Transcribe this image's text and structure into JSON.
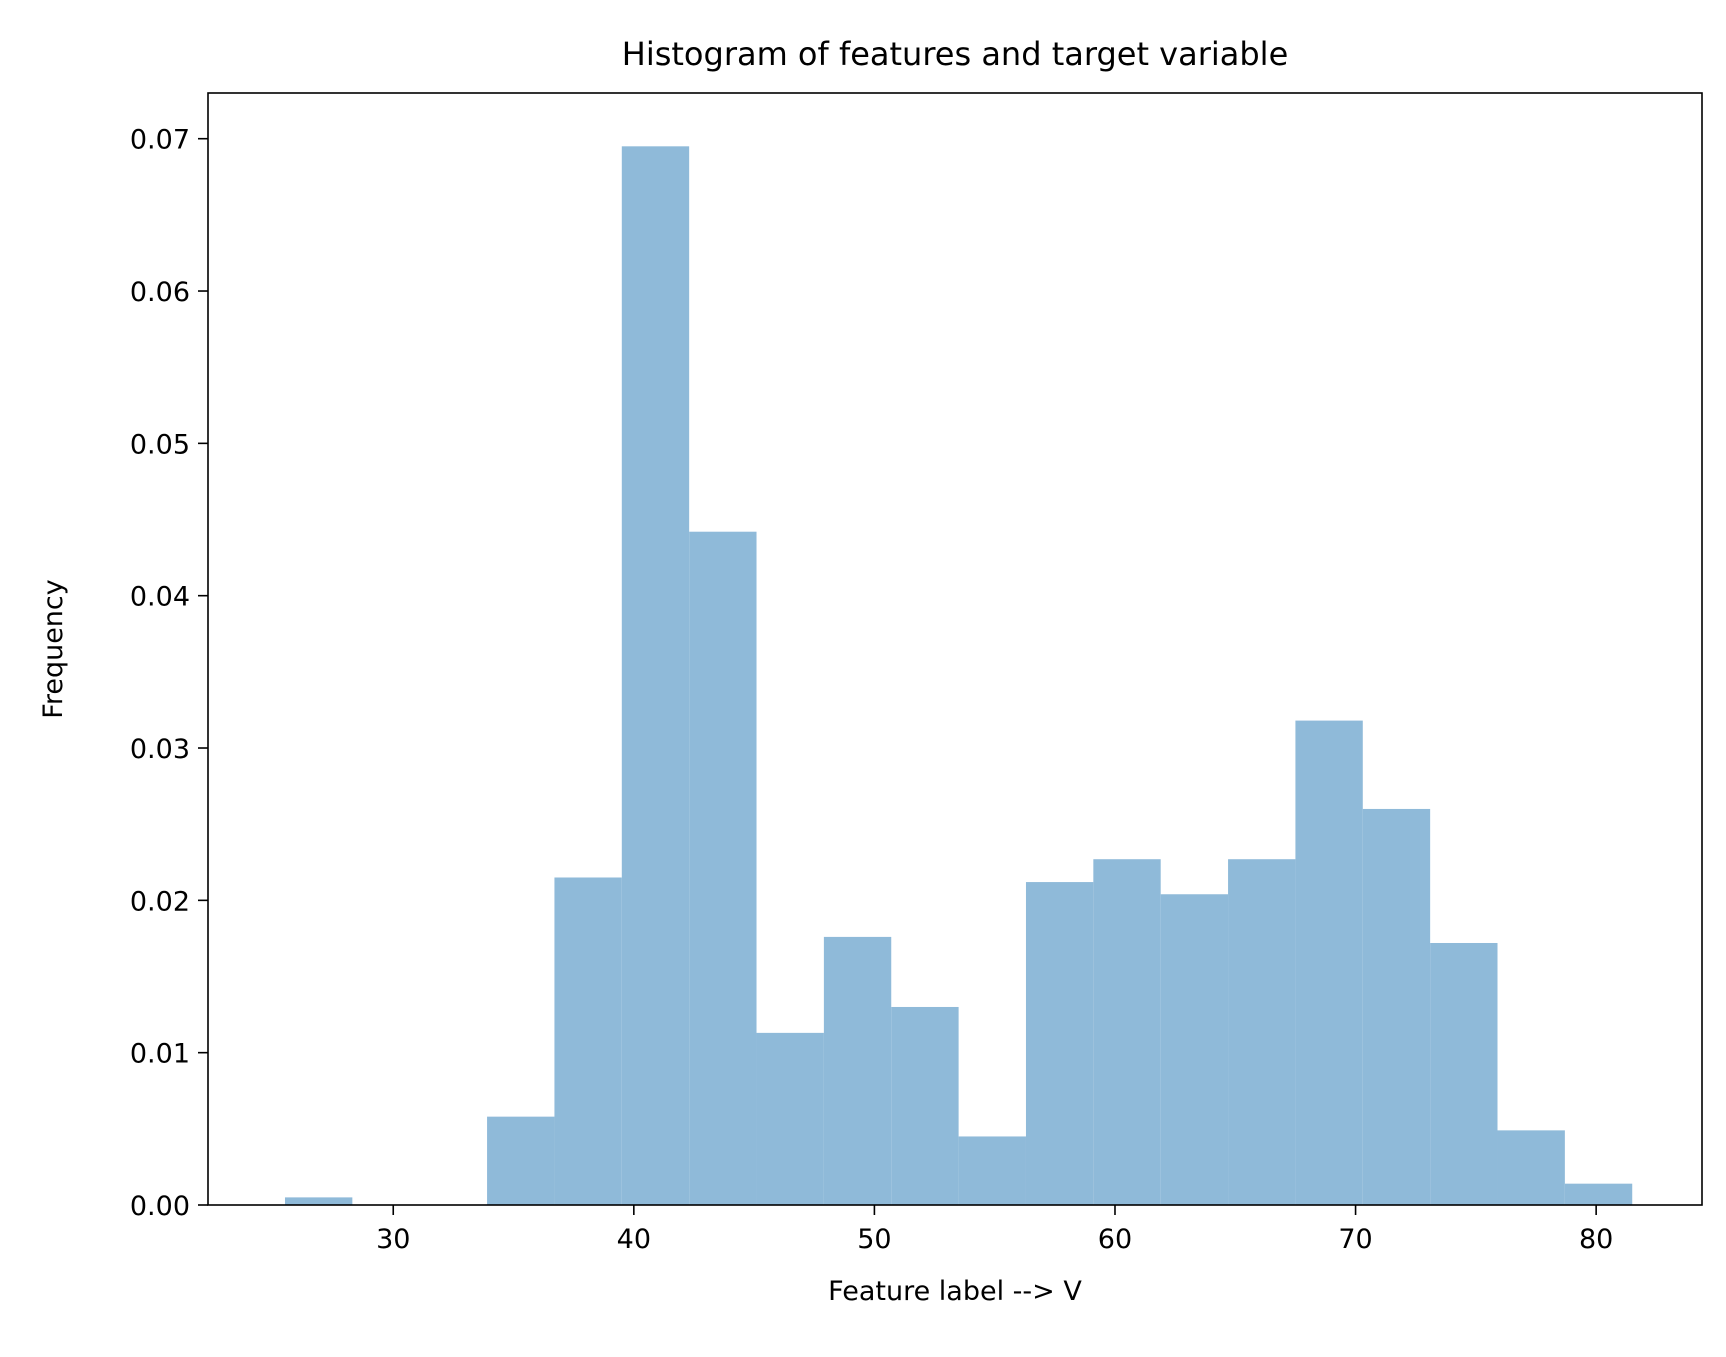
{
  "chart_data": {
    "type": "bar",
    "histogram": true,
    "title": "Histogram of features and target variable",
    "xlabel": "Feature label --> V",
    "ylabel": "Frequency",
    "xlim": [
      22.3,
      84.4
    ],
    "ylim": [
      0,
      0.073
    ],
    "xticks": [
      30,
      40,
      50,
      60,
      70,
      80
    ],
    "yticks": [
      0.0,
      0.01,
      0.02,
      0.03,
      0.04,
      0.05,
      0.06,
      0.07
    ],
    "ytick_decimals": 2,
    "bar_color": "#8fbad9",
    "grid": false,
    "bins": [
      {
        "x0": 25.5,
        "x1": 28.3,
        "value": 0.0005
      },
      {
        "x0": 28.3,
        "x1": 31.1,
        "value": 0.0
      },
      {
        "x0": 31.1,
        "x1": 33.9,
        "value": 0.0
      },
      {
        "x0": 33.9,
        "x1": 36.7,
        "value": 0.0058
      },
      {
        "x0": 36.7,
        "x1": 39.5,
        "value": 0.0215
      },
      {
        "x0": 39.5,
        "x1": 42.3,
        "value": 0.0695
      },
      {
        "x0": 42.3,
        "x1": 45.1,
        "value": 0.0442
      },
      {
        "x0": 45.1,
        "x1": 47.9,
        "value": 0.0113
      },
      {
        "x0": 47.9,
        "x1": 50.7,
        "value": 0.0176
      },
      {
        "x0": 50.7,
        "x1": 53.5,
        "value": 0.013
      },
      {
        "x0": 53.5,
        "x1": 56.3,
        "value": 0.0045
      },
      {
        "x0": 56.3,
        "x1": 59.1,
        "value": 0.0212
      },
      {
        "x0": 59.1,
        "x1": 61.9,
        "value": 0.0227
      },
      {
        "x0": 61.9,
        "x1": 64.7,
        "value": 0.0204
      },
      {
        "x0": 64.7,
        "x1": 67.5,
        "value": 0.0227
      },
      {
        "x0": 67.5,
        "x1": 70.3,
        "value": 0.0318
      },
      {
        "x0": 70.3,
        "x1": 73.1,
        "value": 0.026
      },
      {
        "x0": 73.1,
        "x1": 75.9,
        "value": 0.0172
      },
      {
        "x0": 75.9,
        "x1": 78.7,
        "value": 0.0049
      },
      {
        "x0": 78.7,
        "x1": 81.5,
        "value": 0.0014
      }
    ]
  }
}
